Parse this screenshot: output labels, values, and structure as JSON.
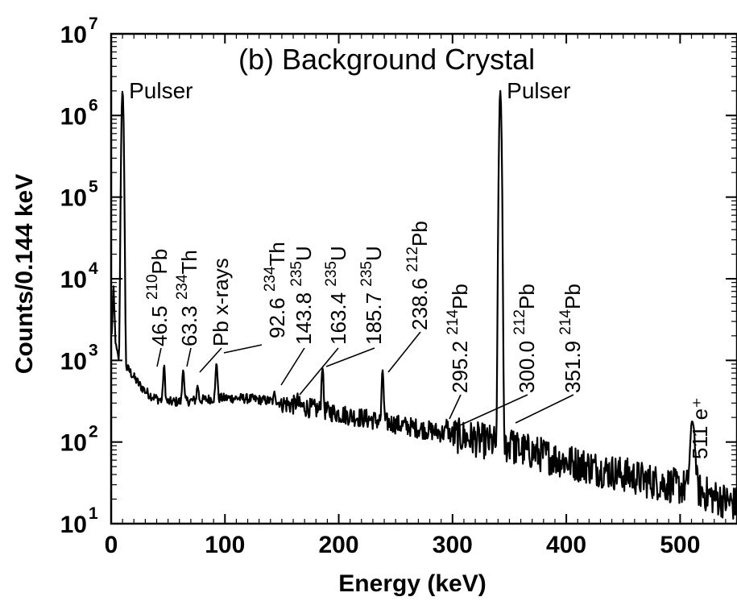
{
  "chart_data": {
    "type": "line",
    "title": "(b) Background Crystal",
    "xlabel": "Energy (keV)",
    "ylabel": "Counts/0.144 keV",
    "xlim": [
      0,
      550
    ],
    "ylim": [
      10,
      10000000
    ],
    "yscale": "log",
    "x_ticks": [
      0,
      100,
      200,
      300,
      400,
      500
    ],
    "y_ticks": [
      {
        "base": "10",
        "exp": "1",
        "value": 10
      },
      {
        "base": "10",
        "exp": "2",
        "value": 100
      },
      {
        "base": "10",
        "exp": "3",
        "value": 1000
      },
      {
        "base": "10",
        "exp": "4",
        "value": 10000
      },
      {
        "base": "10",
        "exp": "5",
        "value": 100000
      },
      {
        "base": "10",
        "exp": "6",
        "value": 1000000
      },
      {
        "base": "10",
        "exp": "7",
        "value": 10000000
      }
    ],
    "grid": false,
    "continuum": [
      [
        0.5,
        2000
      ],
      [
        2,
        8000
      ],
      [
        4,
        1500
      ],
      [
        6,
        1100
      ],
      [
        9,
        900
      ],
      [
        12,
        850
      ],
      [
        16,
        750
      ],
      [
        20,
        620
      ],
      [
        25,
        500
      ],
      [
        30,
        420
      ],
      [
        35,
        370
      ],
      [
        40,
        340
      ],
      [
        45,
        320
      ],
      [
        50,
        310
      ],
      [
        60,
        312
      ],
      [
        70,
        320
      ],
      [
        80,
        330
      ],
      [
        90,
        340
      ],
      [
        100,
        345
      ],
      [
        110,
        345
      ],
      [
        120,
        340
      ],
      [
        130,
        330
      ],
      [
        140,
        318
      ],
      [
        150,
        300
      ],
      [
        160,
        285
      ],
      [
        170,
        268
      ],
      [
        180,
        252
      ],
      [
        190,
        238
      ],
      [
        200,
        223
      ],
      [
        210,
        210
      ],
      [
        220,
        198
      ],
      [
        230,
        187
      ],
      [
        240,
        176
      ],
      [
        250,
        166
      ],
      [
        260,
        156
      ],
      [
        270,
        147
      ],
      [
        280,
        138
      ],
      [
        290,
        130
      ],
      [
        300,
        122
      ],
      [
        310,
        115
      ],
      [
        320,
        108
      ],
      [
        330,
        101
      ],
      [
        340,
        95
      ],
      [
        350,
        88
      ],
      [
        360,
        81
      ],
      [
        370,
        75
      ],
      [
        380,
        69
      ],
      [
        390,
        63
      ],
      [
        400,
        58
      ],
      [
        410,
        54
      ],
      [
        420,
        50
      ],
      [
        430,
        46
      ],
      [
        440,
        43
      ],
      [
        450,
        40
      ],
      [
        460,
        37
      ],
      [
        470,
        34
      ],
      [
        480,
        32
      ],
      [
        490,
        30
      ],
      [
        500,
        28
      ],
      [
        505,
        28
      ],
      [
        510,
        28
      ],
      [
        520,
        24
      ],
      [
        530,
        21
      ],
      [
        540,
        19
      ],
      [
        550,
        17
      ]
    ],
    "peaks": [
      {
        "energy": 10,
        "height": 2000000,
        "label": "Pulser"
      },
      {
        "energy": 46.5,
        "height": 850
      },
      {
        "energy": 63.3,
        "height": 800
      },
      {
        "energy": 76,
        "height": 500
      },
      {
        "energy": 92.6,
        "height": 950
      },
      {
        "energy": 143.8,
        "height": 400
      },
      {
        "energy": 163.4,
        "height": 330
      },
      {
        "energy": 185.7,
        "height": 850
      },
      {
        "energy": 238.6,
        "height": 760
      },
      {
        "energy": 295.2,
        "height": 170
      },
      {
        "energy": 342,
        "height": 2000000,
        "label": "Pulser"
      },
      {
        "energy": 351.9,
        "height": 150
      },
      {
        "energy": 511,
        "height": 180
      }
    ],
    "annotations": [
      {
        "value": "46.5",
        "isotope_mass": "210",
        "isotope": "Pb",
        "energy": 46.5
      },
      {
        "value": "63.3",
        "isotope_mass": "234",
        "isotope": "Th",
        "energy": 63.3
      },
      {
        "value": "Pb x-rays",
        "isotope_mass": "",
        "isotope": "",
        "energy": 76
      },
      {
        "value": "92.6",
        "isotope_mass": "234",
        "isotope": "Th",
        "energy": 92.6
      },
      {
        "value": "143.8",
        "isotope_mass": "235",
        "isotope": "U",
        "energy": 143.8
      },
      {
        "value": "163.4",
        "isotope_mass": "235",
        "isotope": "U",
        "energy": 163.4
      },
      {
        "value": "185.7",
        "isotope_mass": "235",
        "isotope": "U",
        "energy": 185.7
      },
      {
        "value": "238.6",
        "isotope_mass": "212",
        "isotope": "Pb",
        "energy": 238.6
      },
      {
        "value": "295.2",
        "isotope_mass": "214",
        "isotope": "Pb",
        "energy": 295.2
      },
      {
        "value": "300.0",
        "isotope_mass": "212",
        "isotope": "Pb",
        "energy": 300.0
      },
      {
        "value": "351.9",
        "isotope_mass": "214",
        "isotope": "Pb",
        "energy": 351.9
      },
      {
        "value": "511",
        "isotope_mass": "",
        "isotope": "e⁺",
        "energy": 511
      }
    ],
    "pulser_labels": [
      "Pulser",
      "Pulser"
    ],
    "line_color": "#000000"
  }
}
